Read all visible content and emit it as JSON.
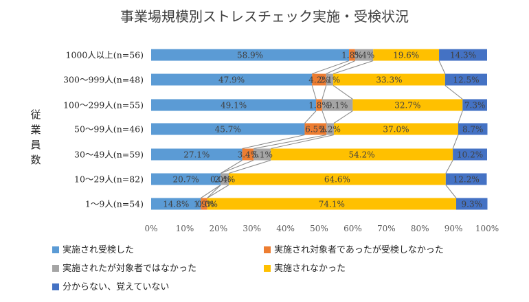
{
  "chart_data": {
    "type": "bar",
    "orientation": "horizontal",
    "stacked": "percent",
    "title": "事業場規模別ストレスチェック実施・受検状況",
    "ylabel": "従業員数",
    "xlim": [
      0,
      100
    ],
    "x_ticks": [
      "0%",
      "10%",
      "20%",
      "30%",
      "40%",
      "50%",
      "60%",
      "70%",
      "80%",
      "90%",
      "100%"
    ],
    "grid": false,
    "legend_position": "bottom",
    "series_lines": true,
    "categories": [
      "1000人以上(n=56)",
      "300～999人(n=48)",
      "100～299人(n=55)",
      "50～99人(n=46)",
      "30～49人(n=59)",
      "10～29人(n=82)",
      "1～9人(n=54)"
    ],
    "series": [
      {
        "name": "実施され受検した",
        "color": "#5B9BD5",
        "values": [
          58.9,
          47.9,
          49.1,
          45.7,
          27.1,
          20.7,
          14.8
        ],
        "labels": [
          "58.9%",
          "47.9%",
          "49.1%",
          "45.7%",
          "27.1%",
          "20.7%",
          "14.8%"
        ]
      },
      {
        "name": "実施され対象者であったが受検しなかった",
        "color": "#ED7D31",
        "values": [
          1.8,
          4.2,
          1.8,
          6.5,
          3.4,
          0.0,
          1.9
        ],
        "labels": [
          "1.8%",
          "4.2%",
          "1.8%",
          "6.5%",
          "3.4%",
          "0.0%",
          "1.9%"
        ]
      },
      {
        "name": "実施されたが対象者ではなかった",
        "color": "#A5A5A5",
        "values": [
          5.4,
          2.1,
          9.1,
          2.2,
          5.1,
          2.4,
          0.0
        ],
        "labels": [
          "5.4%",
          "2.1%",
          "9.1%",
          "2.2%",
          "5.1%",
          "2.4%",
          "0.0%"
        ]
      },
      {
        "name": "実施されなかった",
        "color": "#FFC000",
        "values": [
          19.6,
          33.3,
          32.7,
          37.0,
          54.2,
          64.6,
          74.1
        ],
        "labels": [
          "19.6%",
          "33.3%",
          "32.7%",
          "37.0%",
          "54.2%",
          "64.6%",
          "74.1%"
        ]
      },
      {
        "name": "分からない、覚えていない",
        "color": "#4472C4",
        "values": [
          14.3,
          12.5,
          7.3,
          8.7,
          10.2,
          12.2,
          9.3
        ],
        "labels": [
          "14.3%",
          "12.5%",
          "7.3%",
          "8.7%",
          "10.2%",
          "12.2%",
          "9.3%"
        ]
      }
    ]
  }
}
